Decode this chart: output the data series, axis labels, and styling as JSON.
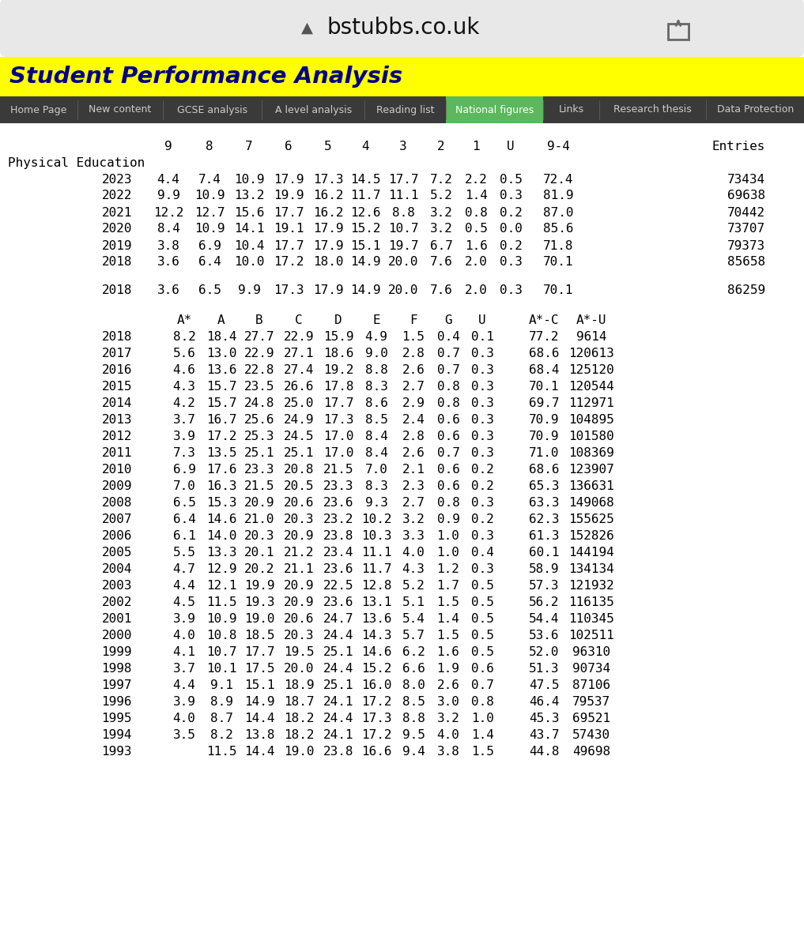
{
  "browser_bar_text": "bstubbs.co.uk",
  "header_title": "Student Performance Analysis",
  "nav_items": [
    "Home Page",
    "New content",
    "GCSE analysis",
    "A level analysis",
    "Reading list",
    "National figures",
    "Links",
    "Research thesis",
    "Data Protection"
  ],
  "nav_active": "National figures",
  "nav_bg": "#3a3a3a",
  "nav_active_color": "#5cb85c",
  "header_bg": "#ffff00",
  "header_text_color": "#00008B",
  "section1_label": "Physical Education",
  "gcse_headers": [
    "9",
    "8",
    "7",
    "6",
    "5",
    "4",
    "3",
    "2",
    "1",
    "U",
    "9-4",
    "Entries"
  ],
  "gcse_rows": [
    [
      "2023",
      "4.4",
      "7.4",
      "10.9",
      "17.9",
      "17.3",
      "14.5",
      "17.7",
      "7.2",
      "2.2",
      "0.5",
      "72.4",
      "73434"
    ],
    [
      "2022",
      "9.9",
      "10.9",
      "13.2",
      "19.9",
      "16.2",
      "11.7",
      "11.1",
      "5.2",
      "1.4",
      "0.3",
      "81.9",
      "69638"
    ],
    [
      "2021",
      "12.2",
      "12.7",
      "15.6",
      "17.7",
      "16.2",
      "12.6",
      "8.8",
      "3.2",
      "0.8",
      "0.2",
      "87.0",
      "70442"
    ],
    [
      "2020",
      "8.4",
      "10.9",
      "14.1",
      "19.1",
      "17.9",
      "15.2",
      "10.7",
      "3.2",
      "0.5",
      "0.0",
      "85.6",
      "73707"
    ],
    [
      "2019",
      "3.8",
      "6.9",
      "10.4",
      "17.7",
      "17.9",
      "15.1",
      "19.7",
      "6.7",
      "1.6",
      "0.2",
      "71.8",
      "79373"
    ],
    [
      "2018",
      "3.6",
      "6.4",
      "10.0",
      "17.2",
      "18.0",
      "14.9",
      "20.0",
      "7.6",
      "2.0",
      "0.3",
      "70.1",
      "85658"
    ]
  ],
  "gcse_row2": [
    "2018",
    "3.6",
    "6.5",
    "9.9",
    "17.3",
    "17.9",
    "14.9",
    "20.0",
    "7.6",
    "2.0",
    "0.3",
    "70.1",
    "86259"
  ],
  "alevel_headers": [
    "A*",
    "A",
    "B",
    "C",
    "D",
    "E",
    "F",
    "G",
    "U",
    "A*-C",
    "A*-U"
  ],
  "alevel_rows": [
    [
      "2018",
      "8.2",
      "18.4",
      "27.7",
      "22.9",
      "15.9",
      "4.9",
      "1.5",
      "0.4",
      "0.1",
      "77.2",
      "9614"
    ],
    [
      "2017",
      "5.6",
      "13.0",
      "22.9",
      "27.1",
      "18.6",
      "9.0",
      "2.8",
      "0.7",
      "0.3",
      "68.6",
      "120613"
    ],
    [
      "2016",
      "4.6",
      "13.6",
      "22.8",
      "27.4",
      "19.2",
      "8.8",
      "2.6",
      "0.7",
      "0.3",
      "68.4",
      "125120"
    ],
    [
      "2015",
      "4.3",
      "15.7",
      "23.5",
      "26.6",
      "17.8",
      "8.3",
      "2.7",
      "0.8",
      "0.3",
      "70.1",
      "120544"
    ],
    [
      "2014",
      "4.2",
      "15.7",
      "24.8",
      "25.0",
      "17.7",
      "8.6",
      "2.9",
      "0.8",
      "0.3",
      "69.7",
      "112971"
    ],
    [
      "2013",
      "3.7",
      "16.7",
      "25.6",
      "24.9",
      "17.3",
      "8.5",
      "2.4",
      "0.6",
      "0.3",
      "70.9",
      "104895"
    ],
    [
      "2012",
      "3.9",
      "17.2",
      "25.3",
      "24.5",
      "17.0",
      "8.4",
      "2.8",
      "0.6",
      "0.3",
      "70.9",
      "101580"
    ],
    [
      "2011",
      "7.3",
      "13.5",
      "25.1",
      "25.1",
      "17.0",
      "8.4",
      "2.6",
      "0.7",
      "0.3",
      "71.0",
      "108369"
    ],
    [
      "2010",
      "6.9",
      "17.6",
      "23.3",
      "20.8",
      "21.5",
      "7.0",
      "2.1",
      "0.6",
      "0.2",
      "68.6",
      "123907"
    ],
    [
      "2009",
      "7.0",
      "16.3",
      "21.5",
      "20.5",
      "23.3",
      "8.3",
      "2.3",
      "0.6",
      "0.2",
      "65.3",
      "136631"
    ],
    [
      "2008",
      "6.5",
      "15.3",
      "20.9",
      "20.6",
      "23.6",
      "9.3",
      "2.7",
      "0.8",
      "0.3",
      "63.3",
      "149068"
    ],
    [
      "2007",
      "6.4",
      "14.6",
      "21.0",
      "20.3",
      "23.2",
      "10.2",
      "3.2",
      "0.9",
      "0.2",
      "62.3",
      "155625"
    ],
    [
      "2006",
      "6.1",
      "14.0",
      "20.3",
      "20.9",
      "23.8",
      "10.3",
      "3.3",
      "1.0",
      "0.3",
      "61.3",
      "152826"
    ],
    [
      "2005",
      "5.5",
      "13.3",
      "20.1",
      "21.2",
      "23.4",
      "11.1",
      "4.0",
      "1.0",
      "0.4",
      "60.1",
      "144194"
    ],
    [
      "2004",
      "4.7",
      "12.9",
      "20.2",
      "21.1",
      "23.6",
      "11.7",
      "4.3",
      "1.2",
      "0.3",
      "58.9",
      "134134"
    ],
    [
      "2003",
      "4.4",
      "12.1",
      "19.9",
      "20.9",
      "22.5",
      "12.8",
      "5.2",
      "1.7",
      "0.5",
      "57.3",
      "121932"
    ],
    [
      "2002",
      "4.5",
      "11.5",
      "19.3",
      "20.9",
      "23.6",
      "13.1",
      "5.1",
      "1.5",
      "0.5",
      "56.2",
      "116135"
    ],
    [
      "2001",
      "3.9",
      "10.9",
      "19.0",
      "20.6",
      "24.7",
      "13.6",
      "5.4",
      "1.4",
      "0.5",
      "54.4",
      "110345"
    ],
    [
      "2000",
      "4.0",
      "10.8",
      "18.5",
      "20.3",
      "24.4",
      "14.3",
      "5.7",
      "1.5",
      "0.5",
      "53.6",
      "102511"
    ],
    [
      "1999",
      "4.1",
      "10.7",
      "17.7",
      "19.5",
      "25.1",
      "14.6",
      "6.2",
      "1.6",
      "0.5",
      "52.0",
      "96310"
    ],
    [
      "1998",
      "3.7",
      "10.1",
      "17.5",
      "20.0",
      "24.4",
      "15.2",
      "6.6",
      "1.9",
      "0.6",
      "51.3",
      "90734"
    ],
    [
      "1997",
      "4.4",
      "9.1",
      "15.1",
      "18.9",
      "25.1",
      "16.0",
      "8.0",
      "2.6",
      "0.7",
      "47.5",
      "87106"
    ],
    [
      "1996",
      "3.9",
      "8.9",
      "14.9",
      "18.7",
      "24.1",
      "17.2",
      "8.5",
      "3.0",
      "0.8",
      "46.4",
      "79537"
    ],
    [
      "1995",
      "4.0",
      "8.7",
      "14.4",
      "18.2",
      "24.4",
      "17.3",
      "8.8",
      "3.2",
      "1.0",
      "45.3",
      "69521"
    ],
    [
      "1994",
      "3.5",
      "8.2",
      "13.8",
      "18.2",
      "24.1",
      "17.2",
      "9.5",
      "4.0",
      "1.4",
      "43.7",
      "57430"
    ],
    [
      "1993",
      "",
      "11.5",
      "14.4",
      "19.0",
      "23.8",
      "16.6",
      "9.4",
      "3.8",
      "1.5",
      "44.8",
      "49698"
    ]
  ],
  "bg_color": "#ffffff",
  "browser_bg": "#e8e8e8"
}
